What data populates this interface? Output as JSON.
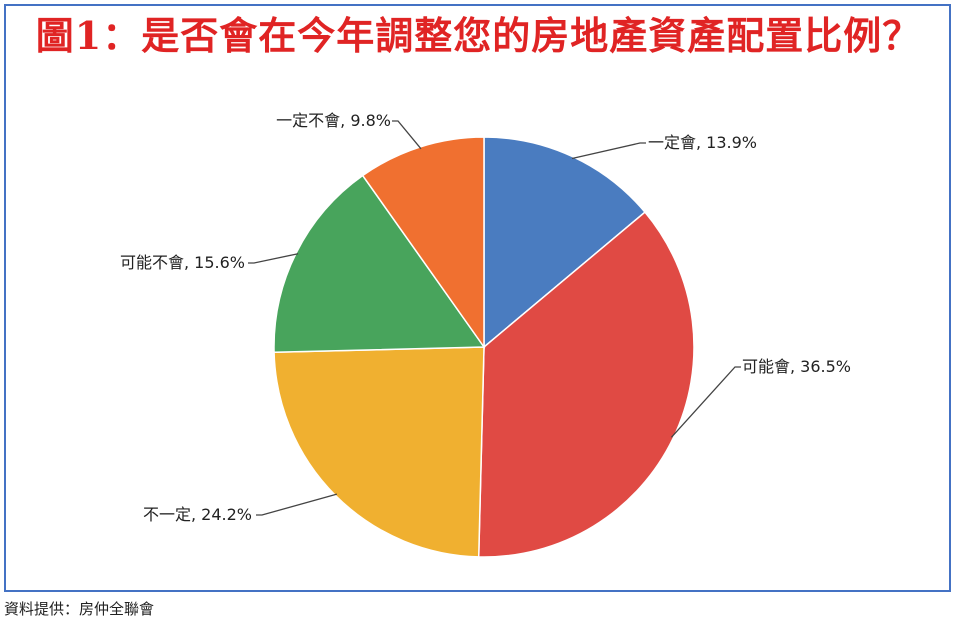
{
  "title": "圖1：是否會在今年調整您的房地產資產配置比例？",
  "source": "資料提供：房仲全聯會",
  "chart_data": {
    "type": "pie",
    "title": "圖1：是否會在今年調整您的房地產資產配置比例？",
    "slices": [
      {
        "label": "一定會",
        "value": 13.9,
        "display": "一定會, 13.9%",
        "color": "#4a7cc0"
      },
      {
        "label": "可能會",
        "value": 36.5,
        "display": "可能會, 36.5%",
        "color": "#e04a44"
      },
      {
        "label": "不一定",
        "value": 24.2,
        "display": "不一定, 24.2%",
        "color": "#f0b030"
      },
      {
        "label": "可能不會",
        "value": 15.6,
        "display": "可能不會, 15.6%",
        "color": "#48a45c"
      },
      {
        "label": "一定不會",
        "value": 9.8,
        "display": "一定不會, 9.8%",
        "color": "#f07030"
      }
    ],
    "start_angle": "12 o'clock",
    "direction": "clockwise",
    "legend": "none",
    "data_labels": "outside with leader lines"
  }
}
